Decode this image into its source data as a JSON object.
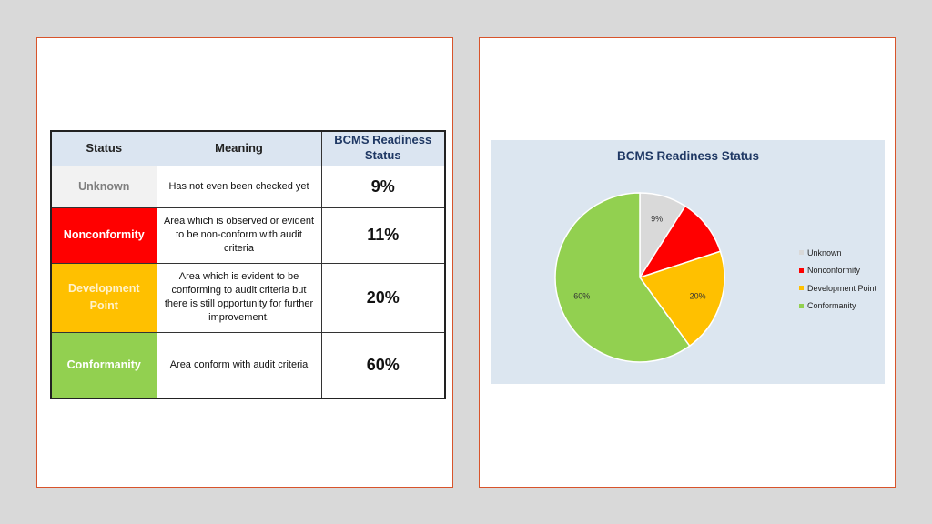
{
  "table": {
    "headers": {
      "status": "Status",
      "meaning": "Meaning",
      "readiness_line1": "BCMS Readiness",
      "readiness_line2": "Status"
    },
    "rows": [
      {
        "status": "Unknown",
        "meaning": "Has not even been checked yet",
        "percent": "9%",
        "color": "#f2f2f2",
        "text_color": "#7f7f7f"
      },
      {
        "status": "Nonconformity",
        "meaning": "Area which is observed or evident to be non-conform with audit criteria",
        "percent": "11%",
        "color": "#ff0000",
        "text_color": "#ffffff"
      },
      {
        "status": "Development Point",
        "meaning": "Area which is evident to be conforming to audit criteria but there is still opportunity for further improvement.",
        "percent": "20%",
        "color": "#ffc000",
        "text_color": "#fff2cc"
      },
      {
        "status": "Conformanity",
        "meaning": "Area conform with audit criteria",
        "percent": "60%",
        "color": "#92d050",
        "text_color": "#ffffff"
      }
    ]
  },
  "chart_data": {
    "type": "pie",
    "title": "BCMS Readiness Status",
    "categories": [
      "Unknown",
      "Nonconformity",
      "Development Point",
      "Conformanity"
    ],
    "values": [
      9,
      11,
      20,
      60
    ],
    "data_labels": [
      "9%",
      "",
      "20%",
      "60%"
    ],
    "colors": [
      "#d9d9d9",
      "#ff0000",
      "#ffc000",
      "#92d050"
    ],
    "legend": [
      "Unknown",
      "Nonconformity",
      "Development Point",
      "Conformanity"
    ],
    "legend_position": "right"
  }
}
